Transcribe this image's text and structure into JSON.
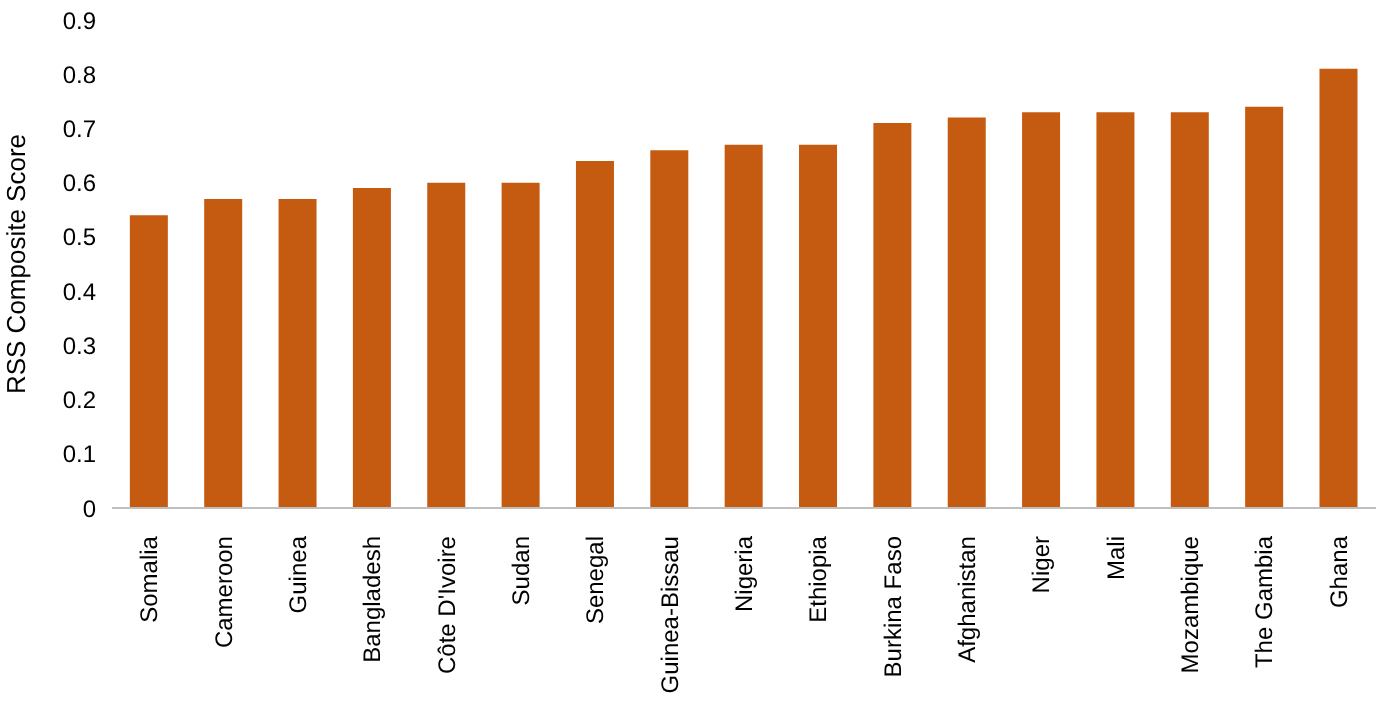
{
  "chart_data": {
    "type": "bar",
    "ylabel": "RSS Composite Score",
    "categories": [
      "Somalia",
      "Cameroon",
      "Guinea",
      "Bangladesh",
      "Côte D'Ivoire",
      "Sudan",
      "Senegal",
      "Guinea-Bissau",
      "Nigeria",
      "Ethiopia",
      "Burkina Faso",
      "Afghanistan",
      "Niger",
      "Mali",
      "Mozambique",
      "The Gambia",
      "Ghana"
    ],
    "values": [
      0.54,
      0.57,
      0.57,
      0.59,
      0.6,
      0.6,
      0.64,
      0.66,
      0.67,
      0.67,
      0.71,
      0.72,
      0.73,
      0.73,
      0.73,
      0.74,
      0.81
    ],
    "color": "#c55a11",
    "ylim": [
      0,
      0.9
    ],
    "yticks": [
      0,
      0.1,
      0.2,
      0.3,
      0.4,
      0.5,
      0.6,
      0.7,
      0.8,
      0.9
    ]
  }
}
